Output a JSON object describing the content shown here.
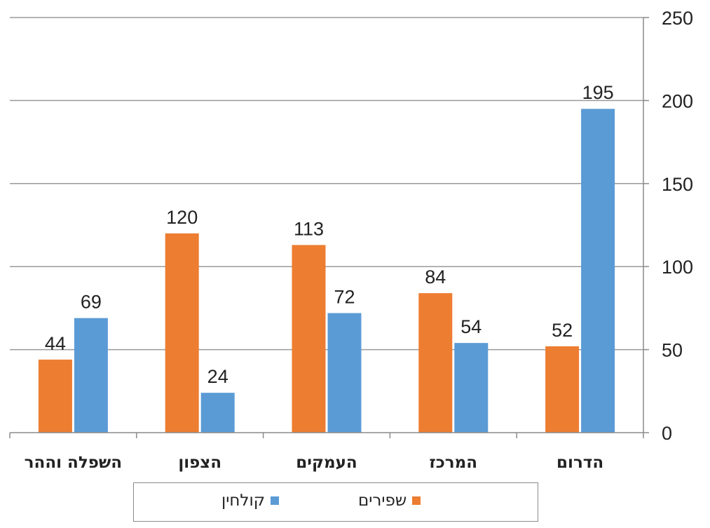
{
  "chart_data": {
    "type": "bar",
    "categories": [
      "השפלה וההר",
      "הצפון",
      "העמקים",
      "המרכז",
      "הדרום"
    ],
    "series": [
      {
        "name": "שפירים",
        "values": [
          44,
          120,
          113,
          84,
          52
        ],
        "color": "#ED7D31"
      },
      {
        "name": "קולחין",
        "values": [
          69,
          24,
          72,
          54,
          195
        ],
        "color": "#5B9BD5"
      }
    ],
    "ylim": [
      0,
      250
    ],
    "yticks": [
      0,
      50,
      100,
      150,
      200,
      250
    ],
    "y_axis_position": "right",
    "grid": true,
    "legend_position": "bottom",
    "data_labels": true
  }
}
